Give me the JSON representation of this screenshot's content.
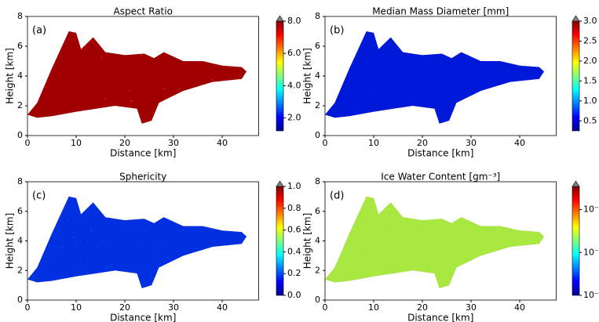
{
  "chart_data": [
    {
      "type": "heatmap",
      "title": "Aspect Ratio",
      "panel_label": "(a)",
      "xlabel": "Distance [km]",
      "ylabel": "Height [km]",
      "xlim": [
        0,
        47.5
      ],
      "ylim": [
        0,
        8
      ],
      "xticks": [
        0,
        10,
        20,
        30,
        40
      ],
      "yticks": [
        0,
        2,
        4,
        6,
        8
      ],
      "colorbar": {
        "cmap": "jet",
        "log": false,
        "extend": "max",
        "clim": [
          1.2,
          8
        ],
        "ticks": [
          {
            "value": 2,
            "label": "2.0"
          },
          {
            "value": 4,
            "label": "4.0"
          },
          {
            "value": 6,
            "label": "6.0"
          },
          {
            "value": 8,
            "label": "8.0"
          }
        ]
      }
    },
    {
      "type": "heatmap",
      "title": "Median Mass Diameter [mm]",
      "panel_label": "(b)",
      "xlabel": "Distance [km]",
      "ylabel": "Height [km]",
      "xlim": [
        0,
        47.5
      ],
      "ylim": [
        0,
        8
      ],
      "xticks": [
        0,
        10,
        20,
        30,
        40
      ],
      "yticks": [
        0,
        2,
        4,
        6,
        8
      ],
      "colorbar": {
        "cmap": "jet",
        "log": false,
        "extend": "max",
        "clim": [
          0.25,
          3
        ],
        "ticks": [
          0.5,
          {
            "value": 1,
            "label": "1.0"
          },
          1.5,
          {
            "value": 2,
            "label": "2.0"
          },
          2.5,
          {
            "value": 3,
            "label": "3.0"
          }
        ]
      }
    },
    {
      "type": "heatmap",
      "title": "Sphericity",
      "panel_label": "(c)",
      "xlabel": "Distance [km]",
      "ylabel": "Height [km]",
      "xlim": [
        0,
        47.5
      ],
      "ylim": [
        0,
        8
      ],
      "xticks": [
        0,
        10,
        20,
        30,
        40
      ],
      "yticks": [
        0,
        2,
        4,
        6,
        8
      ],
      "colorbar": {
        "cmap": "jet",
        "log": false,
        "extend": "max",
        "clim": [
          0,
          1
        ],
        "ticks": [
          {
            "value": 0,
            "label": "0.0"
          },
          0.2,
          0.4,
          0.6,
          0.8,
          {
            "value": 1,
            "label": "1.0"
          }
        ]
      }
    },
    {
      "type": "heatmap",
      "title": "Ice Water Content [gm⁻³]",
      "panel_label": "(d)",
      "xlabel": "Distance [km]",
      "ylabel": "Height [km]",
      "xlim": [
        0,
        47.5
      ],
      "ylim": [
        0,
        8
      ],
      "xticks": [
        0,
        10,
        20,
        30,
        40
      ],
      "yticks": [
        0,
        2,
        4,
        6,
        8
      ],
      "colorbar": {
        "cmap": "jet",
        "log": true,
        "extend": "max",
        "clim": [
          1e-05,
          1.2
        ],
        "ticks": [
          {
            "value": 1e-05,
            "label": "10⁻⁵"
          },
          {
            "value": 0.001,
            "label": "10⁻³"
          },
          {
            "value": 0.1,
            "label": "10⁻¹"
          }
        ]
      }
    }
  ]
}
